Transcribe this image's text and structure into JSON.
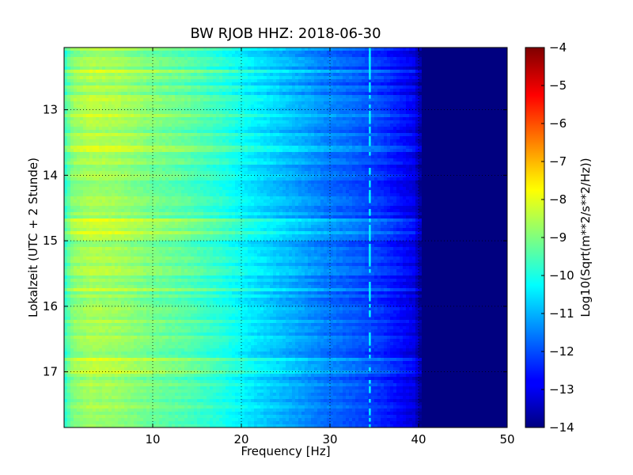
{
  "chart_data": {
    "type": "heatmap",
    "title": "BW RJOB HHZ: 2018-06-30",
    "xlabel": "Frequency [Hz]",
    "ylabel": "Lokalzeit (UTC + 2 Stunde)",
    "xlim": [
      0,
      50
    ],
    "ylim": [
      12.05,
      17.85
    ],
    "y_inverted": true,
    "x_ticks": [
      10,
      20,
      30,
      40,
      50
    ],
    "x_tick_labels": [
      "10",
      "20",
      "30",
      "40",
      "50"
    ],
    "y_ticks": [
      13,
      14,
      15,
      16,
      17
    ],
    "y_tick_labels": [
      "13",
      "14",
      "15",
      "16",
      "17"
    ],
    "grid": true,
    "colormap": "jet",
    "colorbar": {
      "label": "Log10(Sqrt(m**2/s**2/Hz))",
      "range": [
        -14,
        -4
      ],
      "ticks": [
        -4,
        -5,
        -6,
        -7,
        -8,
        -9,
        -10,
        -11,
        -12,
        -13,
        -14
      ],
      "tick_labels": [
        "−4",
        "−5",
        "−6",
        "−7",
        "−8",
        "−9",
        "−10",
        "−11",
        "−12",
        "−13",
        "−14"
      ]
    },
    "spectral_profile": {
      "frequency_hz": [
        0,
        1,
        3,
        6,
        10,
        14,
        18,
        21,
        24,
        27,
        30,
        33,
        36,
        38,
        39.5,
        40.5,
        50
      ],
      "level": [
        -9.8,
        -8.9,
        -8.6,
        -8.7,
        -9.1,
        -9.4,
        -9.9,
        -10.4,
        -10.8,
        -11.2,
        -11.6,
        -11.9,
        -12.3,
        -12.7,
        -13.0,
        -14.0,
        -14.0
      ]
    },
    "line_feature": {
      "frequency_hz": 34.5,
      "level": -10.3
    }
  }
}
